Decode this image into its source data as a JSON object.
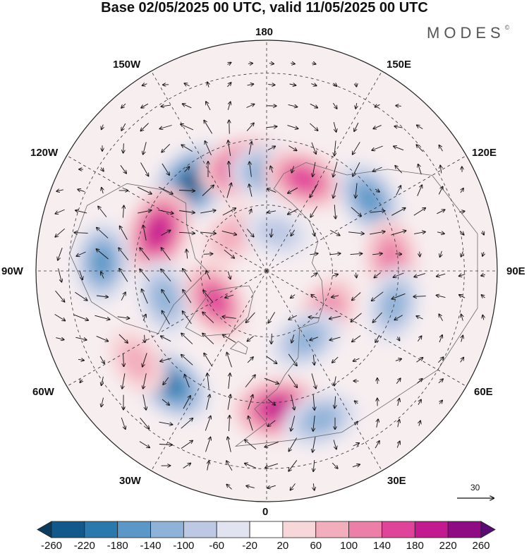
{
  "title": "Base 02/05/2025 00 UTC, valid 11/05/2025 00 UTC",
  "logo": {
    "text": "MODES",
    "mark": "©"
  },
  "longitude_labels": {
    "l180": "180",
    "l150w": "150W",
    "l150e": "150E",
    "l120w": "120W",
    "l120e": "120E",
    "l90w": "90W",
    "l90e": "90E",
    "l60w": "60W",
    "l60e": "60E",
    "l30w": "30W",
    "l30e": "30E",
    "l0": "0"
  },
  "reference_vector": {
    "label": "30"
  },
  "colorbar": {
    "labels": [
      "-260",
      "-220",
      "-180",
      "-140",
      "-100",
      "-60",
      "-20",
      "20",
      "60",
      "100",
      "140",
      "180",
      "220",
      "260"
    ],
    "colors": [
      "#0b3c5d",
      "#11598a",
      "#2979ad",
      "#5b98c7",
      "#8fb2d8",
      "#bcc8e4",
      "#e2e3f0",
      "#ffffff",
      "#f8d7da",
      "#f3aebd",
      "#ec7fa7",
      "#e0439a",
      "#c41a8f",
      "#8e0b83",
      "#5b0a73"
    ]
  },
  "map": {
    "projection": "north polar stereographic",
    "anomalies": [
      {
        "name": "low-150w",
        "lon": -140,
        "lat": 55,
        "value": -240
      },
      {
        "name": "high-165w",
        "lon": -168,
        "lat": 58,
        "value": 200
      },
      {
        "name": "low-175e",
        "lon": 178,
        "lat": 60,
        "value": -140
      },
      {
        "name": "high-155e",
        "lon": 158,
        "lat": 60,
        "value": 160
      },
      {
        "name": "high-110w",
        "lon": -110,
        "lat": 55,
        "value": 210
      },
      {
        "name": "low-95w",
        "lon": -93,
        "lat": 40,
        "value": -150
      },
      {
        "name": "low-80w",
        "lon": -75,
        "lat": 58,
        "value": -120
      },
      {
        "name": "high-60w",
        "lon": -60,
        "lat": 72,
        "value": 150
      },
      {
        "name": "low-125e",
        "lon": 125,
        "lat": 52,
        "value": -150
      },
      {
        "name": "high-95e",
        "lon": 96,
        "lat": 52,
        "value": 130
      },
      {
        "name": "low-75e",
        "lon": 75,
        "lat": 50,
        "value": -110
      },
      {
        "name": "high-55e",
        "lon": 55,
        "lat": 68,
        "value": 130
      },
      {
        "name": "low-30e",
        "lon": 30,
        "lat": 66,
        "value": -120
      },
      {
        "name": "low-40w",
        "lon": -40,
        "lat": 45,
        "value": -180
      },
      {
        "name": "high-5e",
        "lon": 5,
        "lat": 48,
        "value": 210
      },
      {
        "name": "low-20e",
        "lon": 20,
        "lat": 42,
        "value": -120
      },
      {
        "name": "high-50w",
        "lon": -55,
        "lat": 42,
        "value": 80
      },
      {
        "name": "high-135w",
        "lon": -135,
        "lat": 75,
        "value": 70
      },
      {
        "name": "low-170e-high-lat",
        "lon": 165,
        "lat": 78,
        "value": -60
      }
    ]
  }
}
